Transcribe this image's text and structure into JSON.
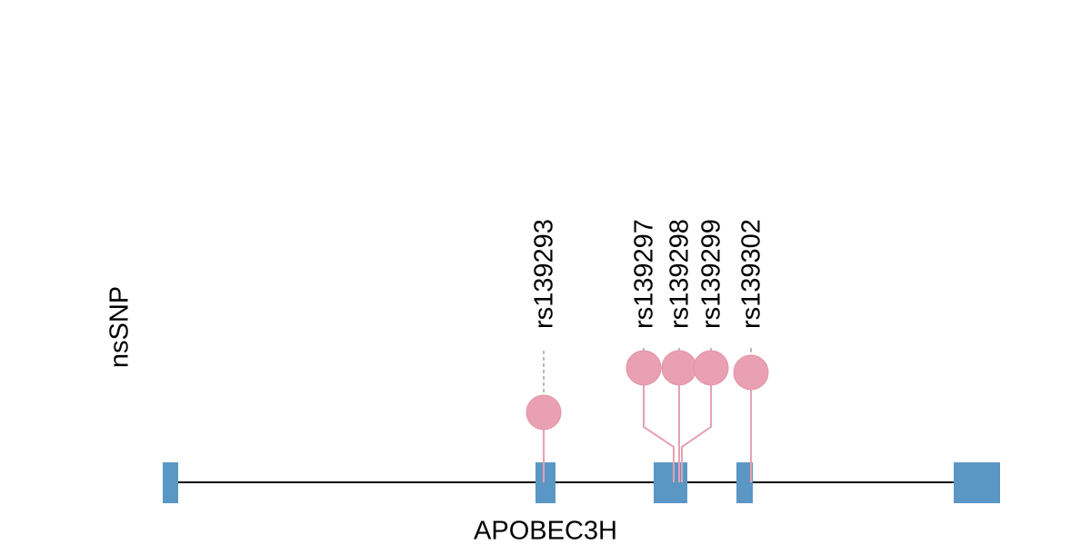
{
  "track_label": "nsSNP",
  "gene": "APOBEC3H",
  "snps": [
    {
      "label": "rs139293"
    },
    {
      "label": "rs139297"
    },
    {
      "label": "rs139298"
    },
    {
      "label": "rs139299"
    },
    {
      "label": "rs139302"
    }
  ]
}
